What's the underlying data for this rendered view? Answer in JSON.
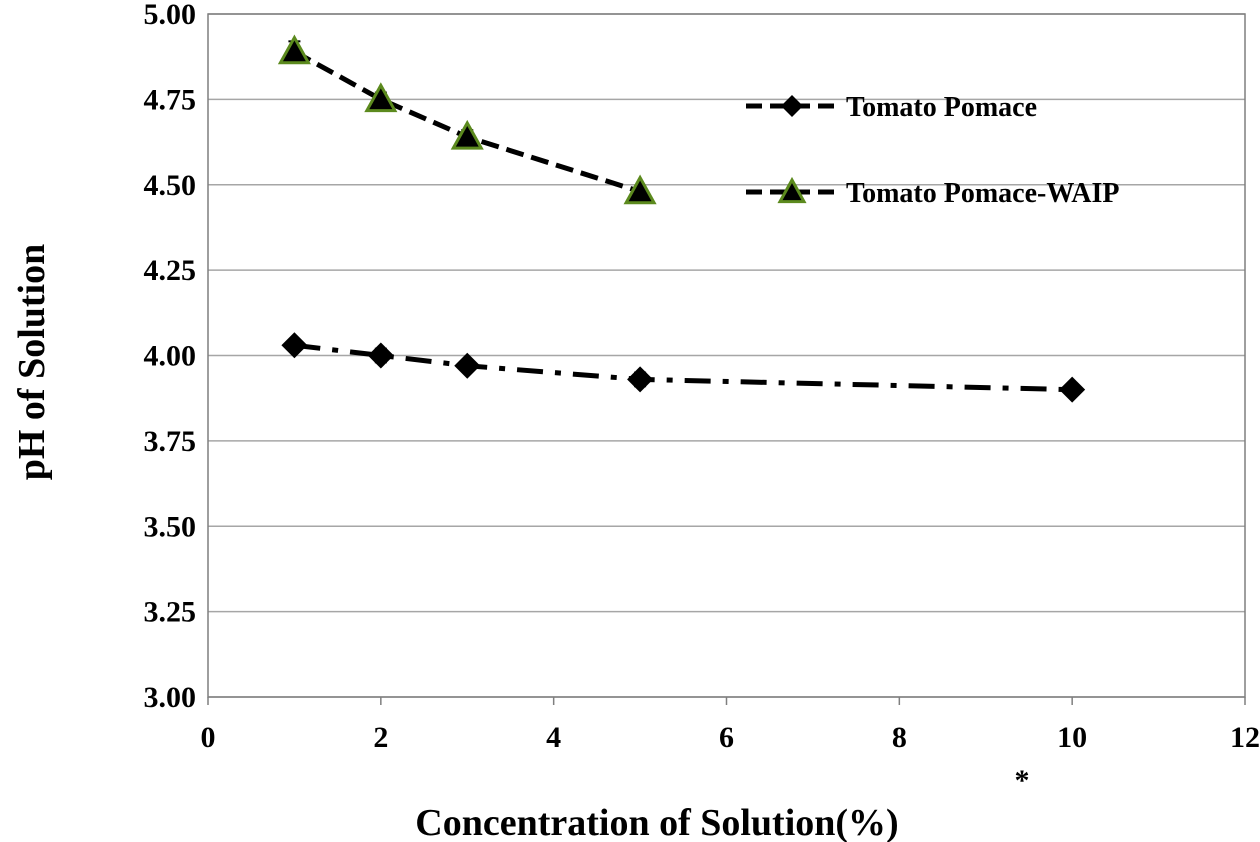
{
  "chart_data": {
    "type": "line",
    "title": "",
    "xlabel": "Concentration of Solution(%)",
    "ylabel": "pH of Solution",
    "xlim": [
      0,
      12
    ],
    "ylim": [
      3.0,
      5.0
    ],
    "x_ticks": [
      "0",
      "2",
      "4",
      "6",
      "8",
      "10",
      "12"
    ],
    "y_ticks": [
      "3.00",
      "3.25",
      "3.50",
      "3.75",
      "4.00",
      "4.25",
      "4.50",
      "4.75",
      "5.00"
    ],
    "grid": "horizontal",
    "legend_position": "top-right",
    "annotation": "*",
    "series": [
      {
        "name": "Tomato Pomace",
        "marker": "diamond",
        "line_style": "dash-dot",
        "color": "#000000",
        "x": [
          1,
          2,
          3,
          5,
          10
        ],
        "y": [
          4.03,
          4.0,
          3.97,
          3.93,
          3.9
        ],
        "error": [
          0.01,
          0.02,
          0.01,
          0.02,
          0.01
        ]
      },
      {
        "name": "Tomato Pomace-WAIP",
        "marker": "triangle",
        "line_style": "dashed",
        "color": "#000000",
        "marker_edge_color": "#5c8a1e",
        "x": [
          1,
          2,
          3,
          5
        ],
        "y": [
          4.89,
          4.75,
          4.64,
          4.48
        ],
        "error": [
          0.03,
          0.02,
          0.02,
          0.01
        ]
      }
    ]
  }
}
